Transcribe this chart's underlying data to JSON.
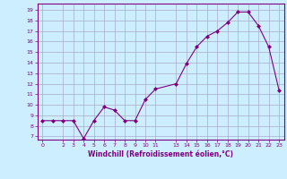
{
  "x": [
    0,
    1,
    2,
    3,
    4,
    5,
    6,
    7,
    8,
    9,
    10,
    11,
    13,
    14,
    15,
    16,
    17,
    18,
    19,
    20,
    21,
    22,
    23
  ],
  "y": [
    8.5,
    8.5,
    8.5,
    8.5,
    6.8,
    8.5,
    9.8,
    9.5,
    8.5,
    8.5,
    10.5,
    11.5,
    12.0,
    13.9,
    15.5,
    16.5,
    17.0,
    17.8,
    18.8,
    18.8,
    17.5,
    15.5,
    11.4
  ],
  "xlim": [
    -0.5,
    23.5
  ],
  "ylim": [
    6.7,
    19.6
  ],
  "yticks": [
    7,
    8,
    9,
    10,
    11,
    12,
    13,
    14,
    15,
    16,
    17,
    18,
    19
  ],
  "xticks": [
    0,
    2,
    3,
    4,
    5,
    6,
    7,
    8,
    9,
    10,
    11,
    13,
    14,
    15,
    16,
    17,
    18,
    19,
    20,
    21,
    22,
    23
  ],
  "xlabel": "Windchill (Refroidissement éolien,°C)",
  "line_color": "#800080",
  "marker": "D",
  "marker_size": 2,
  "bg_color": "#cceeff",
  "grid_color": "#aaaacc",
  "label_color": "#800080",
  "tick_color": "#800080",
  "spine_color": "#800080"
}
